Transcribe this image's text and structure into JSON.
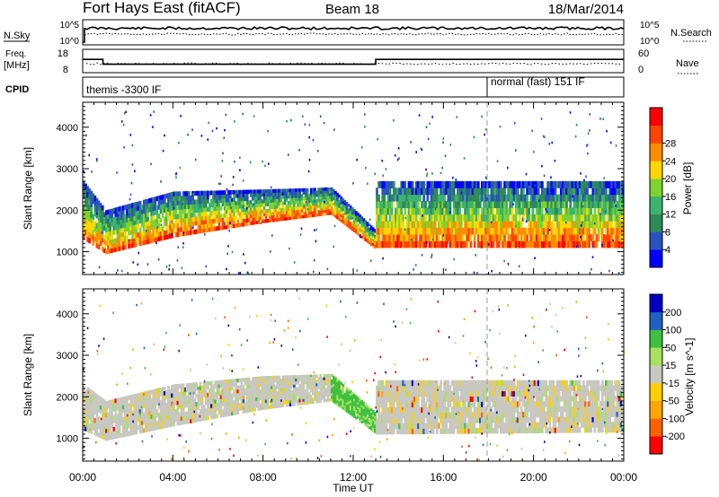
{
  "header": {
    "station": "Fort Hays East (fitACF)",
    "beam": "Beam 18",
    "date": "18/Mar/2014"
  },
  "summary": {
    "nsky_label": "N.Sky",
    "nsky_ticks": [
      "10^5",
      "10^0"
    ],
    "nsearch_label": "N.Search",
    "nsearch_ticks": [
      "10^5",
      "10^0"
    ],
    "freq_label_1": "Freq.",
    "freq_label_2": "[MHz]",
    "freq_ticks": [
      "18",
      "8"
    ],
    "nave_label": "Nave",
    "nave_ticks": [
      "60",
      "0"
    ],
    "cpid_label": "CPID",
    "cpid_segments": [
      "themis -3300 IF",
      "normal (fast) 151 IF"
    ],
    "freq_steps": [
      {
        "from": 0.0,
        "to": 0.9,
        "mhz": 14.0
      },
      {
        "from": 0.9,
        "to": 13.0,
        "mhz": 11.0
      },
      {
        "from": 13.0,
        "to": 24.0,
        "mhz": 14.0
      }
    ]
  },
  "colors": {
    "power": [
      "#0000ff",
      "#2a52be",
      "#2e8b57",
      "#3cb371",
      "#7fd32e",
      "#ffd700",
      "#ff8c00",
      "#ff4500",
      "#ff0000"
    ],
    "velocity": [
      "#ff0000",
      "#ff6000",
      "#ffa500",
      "#ffd000",
      "#c8c8c0",
      "#a8e060",
      "#40c040",
      "#2060c0",
      "#0000c0"
    ]
  },
  "chart_data": [
    {
      "type": "heatmap",
      "name": "power",
      "xlabel": "",
      "ylabel": "Slant Range [km]",
      "xlim": [
        0,
        24
      ],
      "ylim": [
        450,
        4600
      ],
      "yticks": [
        1000,
        2000,
        3000,
        4000
      ],
      "colorbar_label": "Power [dB]",
      "colorbar_ticks": [
        "4",
        "8",
        "12",
        "16",
        "20",
        "24",
        "28"
      ],
      "echo_bands": [
        {
          "t_start": 0.0,
          "t_end": 1.0,
          "lower_km": [
            1300,
            950
          ],
          "upper_km": [
            2700,
            2000
          ]
        },
        {
          "t_start": 1.0,
          "t_end": 4.0,
          "lower_km": [
            950,
            1350
          ],
          "upper_km": [
            2000,
            2450
          ]
        },
        {
          "t_start": 4.0,
          "t_end": 8.0,
          "lower_km": [
            1350,
            1700
          ],
          "upper_km": [
            2450,
            2500
          ]
        },
        {
          "t_start": 8.0,
          "t_end": 11.0,
          "lower_km": [
            1700,
            1900
          ],
          "upper_km": [
            2500,
            2550
          ]
        },
        {
          "t_start": 11.0,
          "t_end": 13.0,
          "lower_km": [
            1900,
            1050
          ],
          "upper_km": [
            2550,
            1500
          ]
        },
        {
          "t_start": 13.0,
          "t_end": 24.0,
          "lower_km": [
            1100,
            1100
          ],
          "upper_km": [
            2700,
            2700
          ]
        }
      ]
    },
    {
      "type": "heatmap",
      "name": "velocity",
      "xlabel": "Time UT",
      "ylabel": "Slant Range [km]",
      "xlim": [
        0,
        24
      ],
      "ylim": [
        450,
        4600
      ],
      "yticks": [
        1000,
        2000,
        3000,
        4000
      ],
      "xticks": [
        "00:00",
        "04:00",
        "08:00",
        "12:00",
        "16:00",
        "20:00",
        "00:00"
      ],
      "colorbar_label": "Velocity [m s^-1]",
      "colorbar_ticks": [
        "-200",
        "-100",
        "-50",
        "-15",
        "15",
        "50",
        "100",
        "200"
      ],
      "echo_bands": [
        {
          "t_start": 0.0,
          "t_end": 1.0,
          "lower_km": [
            1200,
            950
          ],
          "upper_km": [
            2300,
            1900
          ]
        },
        {
          "t_start": 1.0,
          "t_end": 4.0,
          "lower_km": [
            950,
            1300
          ],
          "upper_km": [
            1900,
            2300
          ]
        },
        {
          "t_start": 4.0,
          "t_end": 8.0,
          "lower_km": [
            1300,
            1700
          ],
          "upper_km": [
            2300,
            2500
          ]
        },
        {
          "t_start": 8.0,
          "t_end": 11.0,
          "lower_km": [
            1700,
            1900
          ],
          "upper_km": [
            2500,
            2550
          ]
        },
        {
          "t_start": 11.0,
          "t_end": 13.0,
          "lower_km": [
            1900,
            1100
          ],
          "upper_km": [
            2550,
            1600
          ]
        },
        {
          "t_start": 13.0,
          "t_end": 24.0,
          "lower_km": [
            1100,
            1150
          ],
          "upper_km": [
            2400,
            2400
          ]
        }
      ]
    }
  ]
}
